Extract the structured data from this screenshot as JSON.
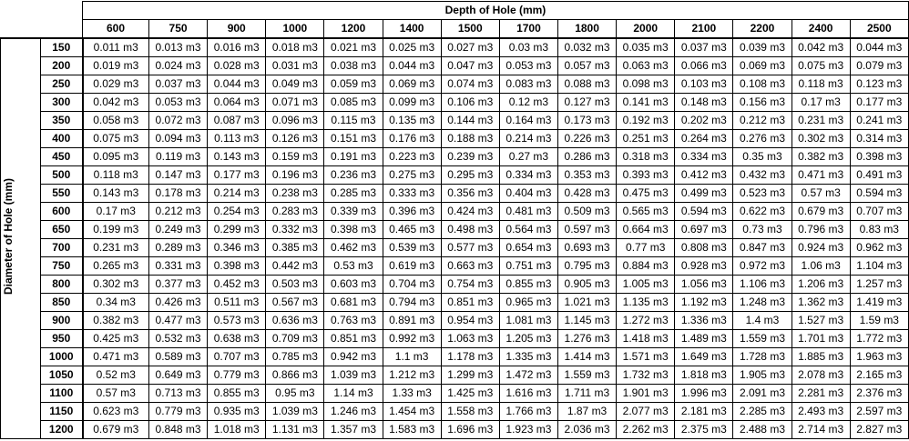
{
  "header": {
    "title": "Depth of Hole (mm)",
    "columns": [
      "600",
      "750",
      "900",
      "1000",
      "1200",
      "1400",
      "1500",
      "1700",
      "1800",
      "2000",
      "2100",
      "2200",
      "2400",
      "2500"
    ]
  },
  "row_header": {
    "title": "Diameter of Hole (mm)",
    "rows": [
      "150",
      "200",
      "250",
      "300",
      "350",
      "400",
      "450",
      "500",
      "550",
      "600",
      "650",
      "700",
      "750",
      "800",
      "850",
      "900",
      "950",
      "1000",
      "1050",
      "1100",
      "1150",
      "1200"
    ]
  },
  "table": {
    "rows": [
      [
        "0.011 m3",
        "0.013 m3",
        "0.016 m3",
        "0.018 m3",
        "0.021 m3",
        "0.025 m3",
        "0.027 m3",
        "0.03 m3",
        "0.032 m3",
        "0.035 m3",
        "0.037 m3",
        "0.039 m3",
        "0.042 m3",
        "0.044 m3"
      ],
      [
        "0.019 m3",
        "0.024 m3",
        "0.028 m3",
        "0.031 m3",
        "0.038 m3",
        "0.044 m3",
        "0.047 m3",
        "0.053 m3",
        "0.057 m3",
        "0.063 m3",
        "0.066 m3",
        "0.069 m3",
        "0.075 m3",
        "0.079 m3"
      ],
      [
        "0.029 m3",
        "0.037 m3",
        "0.044 m3",
        "0.049 m3",
        "0.059 m3",
        "0.069 m3",
        "0.074 m3",
        "0.083 m3",
        "0.088 m3",
        "0.098 m3",
        "0.103 m3",
        "0.108 m3",
        "0.118 m3",
        "0.123 m3"
      ],
      [
        "0.042 m3",
        "0.053 m3",
        "0.064 m3",
        "0.071 m3",
        "0.085 m3",
        "0.099 m3",
        "0.106 m3",
        "0.12 m3",
        "0.127 m3",
        "0.141 m3",
        "0.148 m3",
        "0.156 m3",
        "0.17 m3",
        "0.177 m3"
      ],
      [
        "0.058 m3",
        "0.072 m3",
        "0.087 m3",
        "0.096 m3",
        "0.115 m3",
        "0.135 m3",
        "0.144 m3",
        "0.164 m3",
        "0.173 m3",
        "0.192 m3",
        "0.202 m3",
        "0.212 m3",
        "0.231 m3",
        "0.241 m3"
      ],
      [
        "0.075 m3",
        "0.094 m3",
        "0.113 m3",
        "0.126 m3",
        "0.151 m3",
        "0.176 m3",
        "0.188 m3",
        "0.214 m3",
        "0.226 m3",
        "0.251 m3",
        "0.264 m3",
        "0.276 m3",
        "0.302 m3",
        "0.314 m3"
      ],
      [
        "0.095 m3",
        "0.119 m3",
        "0.143 m3",
        "0.159 m3",
        "0.191 m3",
        "0.223 m3",
        "0.239 m3",
        "0.27 m3",
        "0.286 m3",
        "0.318 m3",
        "0.334 m3",
        "0.35 m3",
        "0.382 m3",
        "0.398 m3"
      ],
      [
        "0.118 m3",
        "0.147 m3",
        "0.177 m3",
        "0.196 m3",
        "0.236 m3",
        "0.275 m3",
        "0.295 m3",
        "0.334 m3",
        "0.353 m3",
        "0.393 m3",
        "0.412 m3",
        "0.432 m3",
        "0.471 m3",
        "0.491 m3"
      ],
      [
        "0.143 m3",
        "0.178 m3",
        "0.214 m3",
        "0.238 m3",
        "0.285 m3",
        "0.333 m3",
        "0.356 m3",
        "0.404 m3",
        "0.428 m3",
        "0.475 m3",
        "0.499 m3",
        "0.523 m3",
        "0.57 m3",
        "0.594 m3"
      ],
      [
        "0.17 m3",
        "0.212 m3",
        "0.254 m3",
        "0.283 m3",
        "0.339 m3",
        "0.396 m3",
        "0.424 m3",
        "0.481 m3",
        "0.509 m3",
        "0.565 m3",
        "0.594 m3",
        "0.622 m3",
        "0.679 m3",
        "0.707 m3"
      ],
      [
        "0.199 m3",
        "0.249 m3",
        "0.299 m3",
        "0.332 m3",
        "0.398 m3",
        "0.465 m3",
        "0.498 m3",
        "0.564 m3",
        "0.597 m3",
        "0.664 m3",
        "0.697 m3",
        "0.73 m3",
        "0.796 m3",
        "0.83 m3"
      ],
      [
        "0.231 m3",
        "0.289 m3",
        "0.346 m3",
        "0.385 m3",
        "0.462 m3",
        "0.539 m3",
        "0.577 m3",
        "0.654 m3",
        "0.693 m3",
        "0.77 m3",
        "0.808 m3",
        "0.847 m3",
        "0.924 m3",
        "0.962 m3"
      ],
      [
        "0.265 m3",
        "0.331 m3",
        "0.398 m3",
        "0.442 m3",
        "0.53 m3",
        "0.619 m3",
        "0.663 m3",
        "0.751 m3",
        "0.795 m3",
        "0.884 m3",
        "0.928 m3",
        "0.972 m3",
        "1.06 m3",
        "1.104 m3"
      ],
      [
        "0.302 m3",
        "0.377 m3",
        "0.452 m3",
        "0.503 m3",
        "0.603 m3",
        "0.704 m3",
        "0.754 m3",
        "0.855 m3",
        "0.905 m3",
        "1.005 m3",
        "1.056 m3",
        "1.106 m3",
        "1.206 m3",
        "1.257 m3"
      ],
      [
        "0.34 m3",
        "0.426 m3",
        "0.511 m3",
        "0.567 m3",
        "0.681 m3",
        "0.794 m3",
        "0.851 m3",
        "0.965 m3",
        "1.021 m3",
        "1.135 m3",
        "1.192 m3",
        "1.248 m3",
        "1.362 m3",
        "1.419 m3"
      ],
      [
        "0.382 m3",
        "0.477 m3",
        "0.573 m3",
        "0.636 m3",
        "0.763 m3",
        "0.891 m3",
        "0.954 m3",
        "1.081 m3",
        "1.145 m3",
        "1.272 m3",
        "1.336 m3",
        "1.4 m3",
        "1.527 m3",
        "1.59 m3"
      ],
      [
        "0.425 m3",
        "0.532 m3",
        "0.638 m3",
        "0.709 m3",
        "0.851 m3",
        "0.992 m3",
        "1.063 m3",
        "1.205 m3",
        "1.276 m3",
        "1.418 m3",
        "1.489 m3",
        "1.559 m3",
        "1.701 m3",
        "1.772 m3"
      ],
      [
        "0.471 m3",
        "0.589 m3",
        "0.707 m3",
        "0.785 m3",
        "0.942 m3",
        "1.1 m3",
        "1.178 m3",
        "1.335 m3",
        "1.414 m3",
        "1.571 m3",
        "1.649 m3",
        "1.728 m3",
        "1.885 m3",
        "1.963 m3"
      ],
      [
        "0.52 m3",
        "0.649 m3",
        "0.779 m3",
        "0.866 m3",
        "1.039 m3",
        "1.212 m3",
        "1.299 m3",
        "1.472 m3",
        "1.559 m3",
        "1.732 m3",
        "1.818 m3",
        "1.905 m3",
        "2.078 m3",
        "2.165 m3"
      ],
      [
        "0.57 m3",
        "0.713 m3",
        "0.855 m3",
        "0.95 m3",
        "1.14 m3",
        "1.33 m3",
        "1.425 m3",
        "1.616 m3",
        "1.711 m3",
        "1.901 m3",
        "1.996 m3",
        "2.091 m3",
        "2.281 m3",
        "2.376 m3"
      ],
      [
        "0.623 m3",
        "0.779 m3",
        "0.935 m3",
        "1.039 m3",
        "1.246 m3",
        "1.454 m3",
        "1.558 m3",
        "1.766 m3",
        "1.87 m3",
        "2.077 m3",
        "2.181 m3",
        "2.285 m3",
        "2.493 m3",
        "2.597 m3"
      ],
      [
        "0.679 m3",
        "0.848 m3",
        "1.018 m3",
        "1.131 m3",
        "1.357 m3",
        "1.583 m3",
        "1.696 m3",
        "1.923 m3",
        "2.036 m3",
        "2.262 m3",
        "2.375 m3",
        "2.488 m3",
        "2.714 m3",
        "2.827 m3"
      ]
    ]
  }
}
